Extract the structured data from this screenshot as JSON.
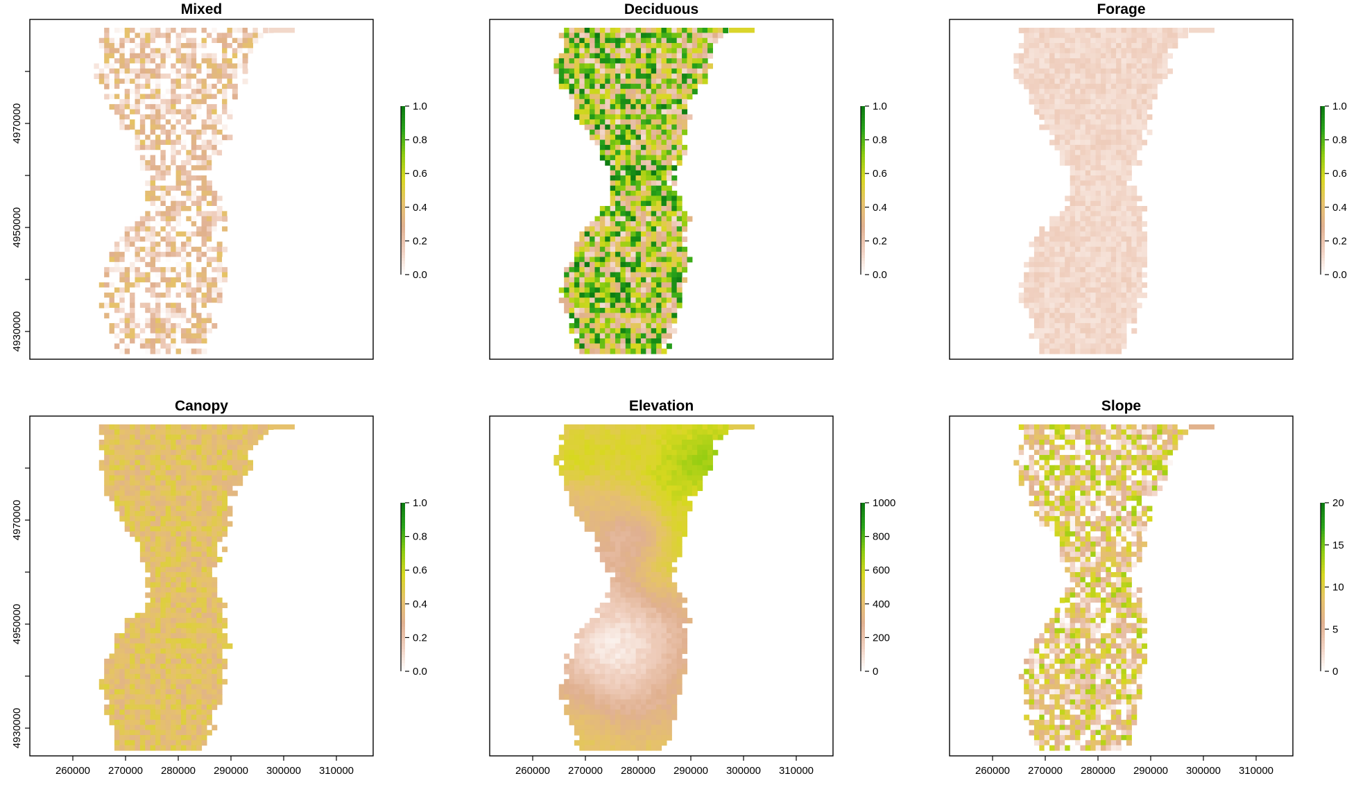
{
  "chart_data": [
    {
      "type": "heatmap",
      "title": "Mixed",
      "x_ticks": [],
      "y_ticks": [
        "4930000",
        "4950000",
        "4970000"
      ],
      "legend": {
        "ticks": [
          "0.0",
          "0.2",
          "0.4",
          "0.6",
          "0.8",
          "1.0"
        ],
        "range": [
          0,
          1
        ]
      },
      "texture": {
        "base": 0.12,
        "spread": 0.32,
        "seed": 11,
        "patch": 1
      }
    },
    {
      "type": "heatmap",
      "title": "Deciduous",
      "x_ticks": [],
      "y_ticks": [],
      "legend": {
        "ticks": [
          "0.0",
          "0.2",
          "0.4",
          "0.6",
          "0.8",
          "1.0"
        ],
        "range": [
          0,
          1
        ]
      },
      "texture": {
        "base": 0.55,
        "spread": 0.45,
        "seed": 23,
        "patch": 1
      }
    },
    {
      "type": "heatmap",
      "title": "Forage",
      "x_ticks": [],
      "y_ticks": [],
      "legend": {
        "ticks": [
          "0.0",
          "0.2",
          "0.4",
          "0.6",
          "0.8",
          "1.0"
        ],
        "range": [
          0,
          1
        ]
      },
      "texture": {
        "base": 0.12,
        "spread": 0.04,
        "seed": 37,
        "patch": 1
      }
    },
    {
      "type": "heatmap",
      "title": "Canopy",
      "x_ticks": [
        "260000",
        "270000",
        "280000",
        "290000",
        "300000",
        "310000"
      ],
      "y_ticks": [
        "4930000",
        "4950000",
        "4970000"
      ],
      "legend": {
        "ticks": [
          "0.0",
          "0.2",
          "0.4",
          "0.6",
          "0.8",
          "1.0"
        ],
        "range": [
          0,
          1
        ]
      },
      "texture": {
        "base": 0.42,
        "spread": 0.1,
        "seed": 41,
        "patch": 1
      }
    },
    {
      "type": "heatmap",
      "title": "Elevation",
      "x_ticks": [
        "260000",
        "270000",
        "280000",
        "290000",
        "300000",
        "310000"
      ],
      "y_ticks": [],
      "legend": {
        "ticks": [
          "0",
          "200",
          "400",
          "600",
          "800",
          "1000"
        ],
        "range": [
          0,
          1000
        ]
      },
      "texture": {
        "base": 0.48,
        "spread": 0.22,
        "seed": 53,
        "patch": 4
      }
    },
    {
      "type": "heatmap",
      "title": "Slope",
      "x_ticks": [
        "260000",
        "270000",
        "280000",
        "290000",
        "300000",
        "310000"
      ],
      "y_ticks": [],
      "legend": {
        "ticks": [
          "0",
          "5",
          "10",
          "15",
          "20"
        ],
        "range": [
          0,
          20
        ]
      },
      "texture": {
        "base": 0.3,
        "spread": 0.38,
        "seed": 67,
        "patch": 1
      }
    }
  ],
  "colors": {
    "low": "#ffffff",
    "ramp": [
      "#ffffff",
      "#f0d0c0",
      "#e0b090",
      "#e6c26a",
      "#d8d820",
      "#8ccc10",
      "#2aa41a",
      "#0b7a12"
    ]
  }
}
